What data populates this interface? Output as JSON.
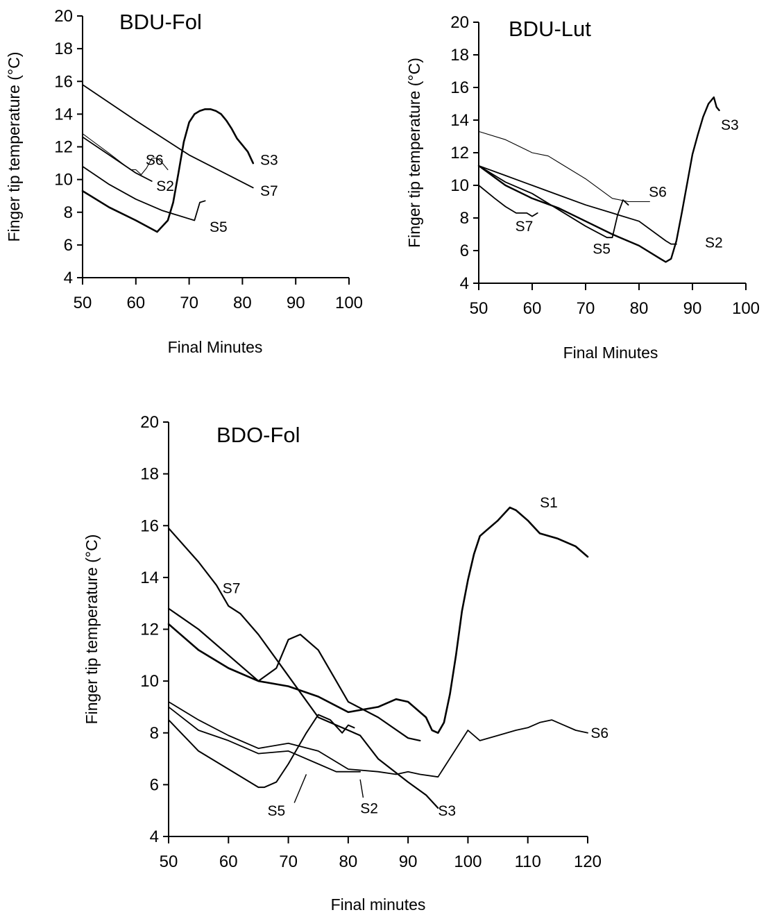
{
  "chart_data": [
    {
      "type": "line",
      "title": "BDU-Fol",
      "xlabel": "Final Minutes",
      "ylabel": "Finger tip temperature (°C)",
      "xlim": [
        50,
        100
      ],
      "ylim": [
        4,
        20
      ],
      "xticks": [
        50,
        60,
        70,
        80,
        90,
        100
      ],
      "yticks": [
        4,
        6,
        8,
        10,
        12,
        14,
        16,
        18,
        20
      ],
      "series": [
        {
          "name": "S3",
          "stroke": 2.6,
          "x": [
            50,
            55,
            60,
            64,
            66,
            67,
            68,
            69,
            70,
            71,
            72,
            73,
            74,
            75,
            76,
            77,
            78,
            79,
            80,
            81,
            82
          ],
          "y": [
            9.3,
            8.3,
            7.5,
            6.8,
            7.5,
            8.6,
            10.4,
            12.3,
            13.5,
            14.0,
            14.2,
            14.3,
            14.3,
            14.2,
            14.0,
            13.6,
            13.1,
            12.5,
            12.1,
            11.7,
            11.0
          ]
        },
        {
          "name": "S7",
          "stroke": 1.8,
          "x": [
            50,
            60,
            70,
            82
          ],
          "y": [
            15.8,
            13.6,
            11.5,
            9.5
          ]
        },
        {
          "name": "S6",
          "stroke": 1.1,
          "x": [
            50,
            55,
            59,
            60,
            61,
            62,
            63,
            64,
            65,
            66
          ],
          "y": [
            12.8,
            11.6,
            10.6,
            10.6,
            10.3,
            10.7,
            11.3,
            11.3,
            11.0,
            10.6
          ]
        },
        {
          "name": "S2",
          "stroke": 1.8,
          "x": [
            50,
            55,
            60,
            63
          ],
          "y": [
            12.6,
            11.5,
            10.4,
            9.9
          ]
        },
        {
          "name": "S5",
          "stroke": 1.8,
          "x": [
            50,
            55,
            60,
            65,
            70,
            71,
            72,
            73
          ],
          "y": [
            10.8,
            9.7,
            8.8,
            8.1,
            7.6,
            7.5,
            8.6,
            8.7
          ]
        }
      ],
      "labels": [
        {
          "text": "S6",
          "x": 63.5,
          "y": 10.9
        },
        {
          "text": "S2",
          "x": 65.5,
          "y": 9.3
        },
        {
          "text": "S3",
          "x": 85,
          "y": 10.9
        },
        {
          "text": "S7",
          "x": 85,
          "y": 9.0
        },
        {
          "text": "S5",
          "x": 75.5,
          "y": 6.8
        }
      ]
    },
    {
      "type": "line",
      "title": "BDU-Lut",
      "xlabel": "Final Minutes",
      "ylabel": "Finger tip temperature (°C)",
      "xlim": [
        50,
        100
      ],
      "ylim": [
        4,
        20
      ],
      "xticks": [
        50,
        60,
        70,
        80,
        90,
        100
      ],
      "yticks": [
        4,
        6,
        8,
        10,
        12,
        14,
        16,
        18,
        20
      ],
      "series": [
        {
          "name": "S6",
          "stroke": 1.1,
          "x": [
            50,
            55,
            60,
            63,
            65,
            70,
            75,
            78,
            80,
            82
          ],
          "y": [
            13.3,
            12.8,
            12.0,
            11.8,
            11.4,
            10.4,
            9.2,
            9.0,
            9.0,
            9.0
          ]
        },
        {
          "name": "S7",
          "stroke": 1.8,
          "x": [
            50,
            53,
            55,
            57,
            59,
            60,
            61
          ],
          "y": [
            10.0,
            9.2,
            8.7,
            8.3,
            8.3,
            8.1,
            8.3
          ]
        },
        {
          "name": "S5",
          "stroke": 1.8,
          "x": [
            50,
            55,
            60,
            65,
            70,
            74,
            75,
            76,
            77,
            78
          ],
          "y": [
            11.2,
            10.2,
            9.5,
            8.5,
            7.5,
            6.8,
            6.8,
            8.2,
            9.1,
            8.8
          ]
        },
        {
          "name": "S2",
          "stroke": 1.8,
          "x": [
            50,
            55,
            60,
            65,
            70,
            75,
            80,
            85,
            86,
            87
          ],
          "y": [
            11.2,
            10.6,
            10.0,
            9.4,
            8.8,
            8.3,
            7.8,
            6.6,
            6.4,
            6.4
          ]
        },
        {
          "name": "S3",
          "stroke": 2.4,
          "x": [
            50,
            55,
            60,
            65,
            70,
            75,
            80,
            84,
            85,
            86,
            87,
            88,
            89,
            90,
            91,
            92,
            93,
            94,
            94.5,
            95
          ],
          "y": [
            11.2,
            10.0,
            9.2,
            8.6,
            7.8,
            7.0,
            6.3,
            5.5,
            5.3,
            5.5,
            6.6,
            8.3,
            10.1,
            11.9,
            13.1,
            14.2,
            15.0,
            15.4,
            14.8,
            14.6
          ]
        }
      ],
      "labels": [
        {
          "text": "S6",
          "x": 83.5,
          "y": 9.3
        },
        {
          "text": "S7",
          "x": 58.5,
          "y": 7.2
        },
        {
          "text": "S5",
          "x": 73,
          "y": 5.8
        },
        {
          "text": "S2",
          "x": 94,
          "y": 6.2
        },
        {
          "text": "S3",
          "x": 97,
          "y": 13.4
        }
      ]
    },
    {
      "type": "line",
      "title": "BDO-Fol",
      "xlabel": "Final minutes",
      "ylabel": "Finger tip temperature (°C)",
      "xlim": [
        50,
        120
      ],
      "ylim": [
        4,
        20
      ],
      "xticks": [
        50,
        60,
        70,
        80,
        90,
        100,
        110,
        120
      ],
      "yticks": [
        4,
        6,
        8,
        10,
        12,
        14,
        16,
        18,
        20
      ],
      "series": [
        {
          "name": "S7",
          "stroke": 2.2,
          "x": [
            50,
            55,
            58,
            60,
            62,
            65,
            70,
            75,
            80,
            82,
            85,
            90,
            93,
            95
          ],
          "y": [
            15.9,
            14.6,
            13.7,
            12.9,
            12.6,
            11.8,
            10.2,
            8.6,
            8.1,
            7.9,
            7.0,
            6.1,
            5.6,
            5.1
          ]
        },
        {
          "name": "S3",
          "stroke": 2.2,
          "x": [
            50,
            55,
            60,
            65,
            68,
            70,
            72,
            75,
            78,
            80,
            85,
            90,
            92
          ],
          "y": [
            12.8,
            12.0,
            11.0,
            10.0,
            10.5,
            11.6,
            11.8,
            11.2,
            10.0,
            9.2,
            8.6,
            7.8,
            7.7
          ]
        },
        {
          "name": "S1",
          "stroke": 2.6,
          "x": [
            50,
            55,
            60,
            65,
            70,
            75,
            80,
            85,
            88,
            90,
            93,
            94,
            95,
            96,
            97,
            98,
            99,
            100,
            101,
            102,
            103,
            105,
            107,
            108,
            110,
            112,
            115,
            118,
            120
          ],
          "y": [
            12.2,
            11.2,
            10.5,
            10.0,
            9.8,
            9.4,
            8.8,
            9.0,
            9.3,
            9.2,
            8.6,
            8.1,
            8.0,
            8.4,
            9.5,
            11.0,
            12.7,
            13.9,
            14.9,
            15.6,
            15.8,
            16.2,
            16.7,
            16.6,
            16.2,
            15.7,
            15.5,
            15.2,
            14.8
          ]
        },
        {
          "name": "S6",
          "stroke": 1.8,
          "x": [
            50,
            55,
            60,
            65,
            70,
            75,
            80,
            85,
            88,
            90,
            92,
            95,
            100,
            102,
            105,
            108,
            110,
            112,
            114,
            116,
            118,
            120
          ],
          "y": [
            9.2,
            8.5,
            7.9,
            7.4,
            7.6,
            7.3,
            6.6,
            6.5,
            6.4,
            6.5,
            6.4,
            6.3,
            8.1,
            7.7,
            7.9,
            8.1,
            8.2,
            8.4,
            8.5,
            8.3,
            8.1,
            8.0
          ]
        },
        {
          "name": "S2",
          "stroke": 1.8,
          "x": [
            50,
            55,
            60,
            65,
            70,
            75,
            78,
            80,
            81,
            82
          ],
          "y": [
            9.0,
            8.1,
            7.7,
            7.2,
            7.3,
            6.8,
            6.5,
            6.5,
            6.5,
            6.5
          ]
        },
        {
          "name": "S5",
          "stroke": 2.0,
          "x": [
            50,
            55,
            60,
            65,
            66,
            68,
            70,
            73,
            75,
            77,
            79,
            80,
            81
          ],
          "y": [
            8.5,
            7.3,
            6.6,
            5.9,
            5.9,
            6.1,
            6.8,
            8.0,
            8.7,
            8.5,
            8.0,
            8.3,
            8.2
          ]
        }
      ],
      "labels": [
        {
          "text": "S1",
          "x": 113.5,
          "y": 16.7
        },
        {
          "text": "S7",
          "x": 60.5,
          "y": 13.4
        },
        {
          "text": "S6",
          "x": 122,
          "y": 7.8
        },
        {
          "text": "S3",
          "x": 96.5,
          "y": 4.8
        },
        {
          "text": "S5",
          "x": 68,
          "y": 4.8
        },
        {
          "text": "S2",
          "x": 83.5,
          "y": 4.9
        }
      ],
      "pointers": [
        {
          "from": [
            71,
            5.3
          ],
          "to": [
            73,
            6.4
          ]
        },
        {
          "from": [
            82.5,
            5.5
          ],
          "to": [
            82,
            6.2
          ]
        }
      ]
    }
  ]
}
